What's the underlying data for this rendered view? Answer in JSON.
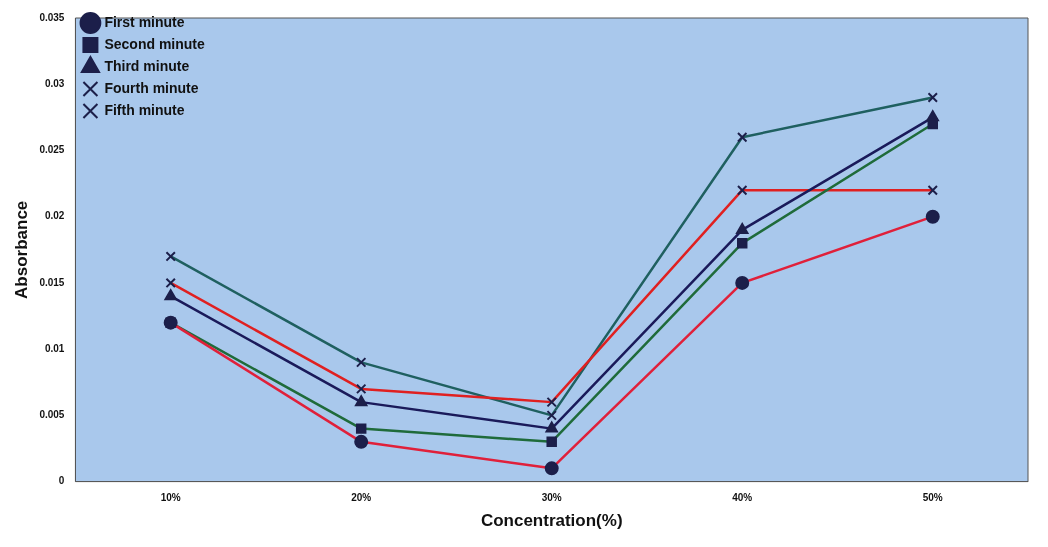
{
  "chart_data": {
    "type": "line",
    "xlabel": "Concentration(%)",
    "ylabel": "Absorbance",
    "categories": [
      "10%",
      "20%",
      "30%",
      "40%",
      "50%"
    ],
    "series": [
      {
        "name": "First minute",
        "color": "#e0203a",
        "marker": "circle",
        "values": [
          0.012,
          0.003,
          0.001,
          0.015,
          0.02
        ]
      },
      {
        "name": "Second minute",
        "color": "#1f6b3a",
        "marker": "square",
        "values": [
          0.012,
          0.004,
          0.003,
          0.018,
          0.027
        ]
      },
      {
        "name": "Third minute",
        "color": "#1a1a5a",
        "marker": "triangle",
        "values": [
          0.014,
          0.006,
          0.004,
          0.019,
          0.0275
        ]
      },
      {
        "name": "Fourth minute",
        "color": "#e02020",
        "marker": "cross",
        "values": [
          0.015,
          0.007,
          0.006,
          0.022,
          0.022
        ]
      },
      {
        "name": "Fifth minute",
        "color": "#1f6060",
        "marker": "cross",
        "values": [
          0.017,
          0.009,
          0.005,
          0.026,
          0.029
        ]
      }
    ],
    "ylim": [
      0,
      0.035
    ],
    "yticks": [
      0,
      0.005,
      0.01,
      0.015,
      0.02,
      0.025,
      0.03,
      0.035
    ],
    "grid": false,
    "legend": "top left",
    "line_style": "solid"
  }
}
